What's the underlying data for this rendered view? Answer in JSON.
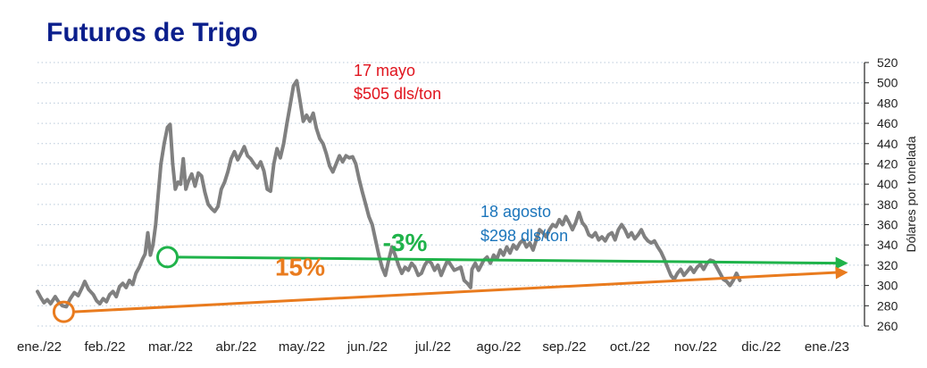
{
  "chart_data": {
    "type": "line",
    "title": "Futuros de Trigo",
    "ylabel": "Dólares por tonelada",
    "xlabel": "",
    "ylim": [
      260,
      520
    ],
    "yticks": [
      260,
      280,
      300,
      320,
      340,
      360,
      380,
      400,
      420,
      440,
      460,
      480,
      500,
      520
    ],
    "xlim": [
      0,
      12.6
    ],
    "categories": [
      "ene./22",
      "feb./22",
      "mar./22",
      "abr./22",
      "may./22",
      "jun./22",
      "jul./22",
      "ago./22",
      "sep./22",
      "oct./22",
      "nov./22",
      "dic./22",
      "ene./23"
    ],
    "grid": true,
    "legend": "none",
    "colors": {
      "line": "#808080",
      "title": "#0b1f8c",
      "peak_annotation": "#e0141e",
      "aug_annotation": "#1b75bb",
      "green": "#1fb34a",
      "orange": "#e97b1e",
      "grid": "#b9c9d9"
    },
    "series": [
      {
        "values": [
          [
            0.0,
            294
          ],
          [
            0.05,
            288
          ],
          [
            0.1,
            283
          ],
          [
            0.15,
            286
          ],
          [
            0.2,
            282
          ],
          [
            0.27,
            289
          ],
          [
            0.32,
            284
          ],
          [
            0.38,
            280
          ],
          [
            0.44,
            279
          ],
          [
            0.5,
            287
          ],
          [
            0.56,
            293
          ],
          [
            0.62,
            290
          ],
          [
            0.68,
            298
          ],
          [
            0.72,
            304
          ],
          [
            0.78,
            296
          ],
          [
            0.85,
            291
          ],
          [
            0.9,
            285
          ],
          [
            0.95,
            282
          ],
          [
            1.0,
            287
          ],
          [
            1.05,
            284
          ],
          [
            1.1,
            291
          ],
          [
            1.15,
            294
          ],
          [
            1.2,
            289
          ],
          [
            1.25,
            299
          ],
          [
            1.3,
            302
          ],
          [
            1.35,
            298
          ],
          [
            1.4,
            305
          ],
          [
            1.45,
            301
          ],
          [
            1.5,
            312
          ],
          [
            1.55,
            318
          ],
          [
            1.6,
            326
          ],
          [
            1.64,
            331
          ],
          [
            1.68,
            352
          ],
          [
            1.72,
            330
          ],
          [
            1.76,
            340
          ],
          [
            1.8,
            360
          ],
          [
            1.84,
            390
          ],
          [
            1.88,
            420
          ],
          [
            1.93,
            440
          ],
          [
            1.98,
            456
          ],
          [
            2.02,
            459
          ],
          [
            2.06,
            420
          ],
          [
            2.1,
            395
          ],
          [
            2.14,
            402
          ],
          [
            2.18,
            400
          ],
          [
            2.22,
            425
          ],
          [
            2.26,
            395
          ],
          [
            2.3,
            403
          ],
          [
            2.35,
            410
          ],
          [
            2.4,
            398
          ],
          [
            2.45,
            411
          ],
          [
            2.5,
            408
          ],
          [
            2.55,
            392
          ],
          [
            2.6,
            380
          ],
          [
            2.65,
            376
          ],
          [
            2.7,
            373
          ],
          [
            2.75,
            378
          ],
          [
            2.8,
            395
          ],
          [
            2.85,
            402
          ],
          [
            2.9,
            412
          ],
          [
            2.95,
            425
          ],
          [
            3.0,
            432
          ],
          [
            3.05,
            424
          ],
          [
            3.1,
            430
          ],
          [
            3.15,
            437
          ],
          [
            3.2,
            428
          ],
          [
            3.25,
            425
          ],
          [
            3.3,
            420
          ],
          [
            3.35,
            416
          ],
          [
            3.4,
            422
          ],
          [
            3.45,
            413
          ],
          [
            3.5,
            395
          ],
          [
            3.55,
            393
          ],
          [
            3.6,
            420
          ],
          [
            3.65,
            435
          ],
          [
            3.7,
            426
          ],
          [
            3.75,
            440
          ],
          [
            3.8,
            460
          ],
          [
            3.85,
            478
          ],
          [
            3.9,
            497
          ],
          [
            3.95,
            502
          ],
          [
            4.0,
            482
          ],
          [
            4.05,
            462
          ],
          [
            4.1,
            468
          ],
          [
            4.15,
            462
          ],
          [
            4.2,
            470
          ],
          [
            4.25,
            455
          ],
          [
            4.3,
            445
          ],
          [
            4.35,
            440
          ],
          [
            4.4,
            430
          ],
          [
            4.45,
            418
          ],
          [
            4.5,
            412
          ],
          [
            4.55,
            420
          ],
          [
            4.6,
            428
          ],
          [
            4.65,
            422
          ],
          [
            4.7,
            428
          ],
          [
            4.75,
            426
          ],
          [
            4.8,
            427
          ],
          [
            4.85,
            420
          ],
          [
            4.9,
            405
          ],
          [
            4.95,
            392
          ],
          [
            5.0,
            380
          ],
          [
            5.05,
            368
          ],
          [
            5.1,
            360
          ],
          [
            5.15,
            345
          ],
          [
            5.2,
            330
          ],
          [
            5.25,
            318
          ],
          [
            5.3,
            310
          ],
          [
            5.35,
            325
          ],
          [
            5.4,
            338
          ],
          [
            5.45,
            330
          ],
          [
            5.5,
            320
          ],
          [
            5.55,
            312
          ],
          [
            5.6,
            318
          ],
          [
            5.65,
            315
          ],
          [
            5.7,
            322
          ],
          [
            5.75,
            318
          ],
          [
            5.8,
            310
          ],
          [
            5.85,
            312
          ],
          [
            5.9,
            320
          ],
          [
            5.95,
            325
          ],
          [
            6.0,
            322
          ],
          [
            6.05,
            315
          ],
          [
            6.1,
            320
          ],
          [
            6.15,
            310
          ],
          [
            6.2,
            318
          ],
          [
            6.25,
            325
          ],
          [
            6.3,
            320
          ],
          [
            6.35,
            315
          ],
          [
            6.45,
            318
          ],
          [
            6.5,
            305
          ],
          [
            6.55,
            302
          ],
          [
            6.6,
            298
          ],
          [
            6.62,
            316
          ],
          [
            6.67,
            322
          ],
          [
            6.72,
            315
          ],
          [
            6.8,
            325
          ],
          [
            6.85,
            328
          ],
          [
            6.9,
            322
          ],
          [
            6.95,
            330
          ],
          [
            7.0,
            326
          ],
          [
            7.05,
            335
          ],
          [
            7.1,
            330
          ],
          [
            7.15,
            338
          ],
          [
            7.2,
            332
          ],
          [
            7.25,
            340
          ],
          [
            7.3,
            336
          ],
          [
            7.35,
            342
          ],
          [
            7.4,
            345
          ],
          [
            7.45,
            338
          ],
          [
            7.5,
            342
          ],
          [
            7.55,
            335
          ],
          [
            7.6,
            345
          ],
          [
            7.65,
            355
          ],
          [
            7.7,
            352
          ],
          [
            7.75,
            348
          ],
          [
            7.8,
            355
          ],
          [
            7.85,
            360
          ],
          [
            7.9,
            358
          ],
          [
            7.95,
            365
          ],
          [
            8.0,
            360
          ],
          [
            8.05,
            368
          ],
          [
            8.1,
            362
          ],
          [
            8.15,
            355
          ],
          [
            8.2,
            362
          ],
          [
            8.25,
            372
          ],
          [
            8.3,
            362
          ],
          [
            8.35,
            358
          ],
          [
            8.4,
            350
          ],
          [
            8.45,
            348
          ],
          [
            8.5,
            352
          ],
          [
            8.55,
            345
          ],
          [
            8.6,
            348
          ],
          [
            8.65,
            344
          ],
          [
            8.7,
            350
          ],
          [
            8.75,
            352
          ],
          [
            8.8,
            345
          ],
          [
            8.85,
            355
          ],
          [
            8.9,
            360
          ],
          [
            8.95,
            355
          ],
          [
            9.0,
            348
          ],
          [
            9.05,
            352
          ],
          [
            9.1,
            346
          ],
          [
            9.15,
            350
          ],
          [
            9.2,
            355
          ],
          [
            9.25,
            348
          ],
          [
            9.3,
            344
          ],
          [
            9.35,
            342
          ],
          [
            9.4,
            344
          ],
          [
            9.45,
            338
          ],
          [
            9.5,
            333
          ],
          [
            9.55,
            326
          ],
          [
            9.6,
            318
          ],
          [
            9.65,
            310
          ],
          [
            9.7,
            306
          ],
          [
            9.75,
            312
          ],
          [
            9.8,
            316
          ],
          [
            9.85,
            310
          ],
          [
            9.9,
            314
          ],
          [
            9.95,
            318
          ],
          [
            10.0,
            313
          ],
          [
            10.05,
            318
          ],
          [
            10.1,
            321
          ],
          [
            10.15,
            316
          ],
          [
            10.2,
            322
          ],
          [
            10.25,
            325
          ],
          [
            10.3,
            324
          ],
          [
            10.35,
            318
          ],
          [
            10.4,
            312
          ],
          [
            10.45,
            306
          ],
          [
            10.5,
            304
          ],
          [
            10.55,
            300
          ],
          [
            10.6,
            305
          ],
          [
            10.65,
            312
          ],
          [
            10.7,
            305
          ]
        ]
      }
    ],
    "annotations": [
      {
        "lines": [
          "17 mayo",
          "$505 dls/ton"
        ],
        "color": "peak_annotation"
      },
      {
        "lines": [
          "18 agosto",
          "$298 dls/ton"
        ],
        "color": "aug_annotation"
      }
    ],
    "trend_lines": [
      {
        "label": "-3%",
        "color": "green",
        "start": [
          1.98,
          328
        ],
        "end": [
          12.35,
          322
        ]
      },
      {
        "label": "15%",
        "color": "orange",
        "start": [
          0.4,
          274
        ],
        "end": [
          12.35,
          313
        ]
      }
    ]
  }
}
